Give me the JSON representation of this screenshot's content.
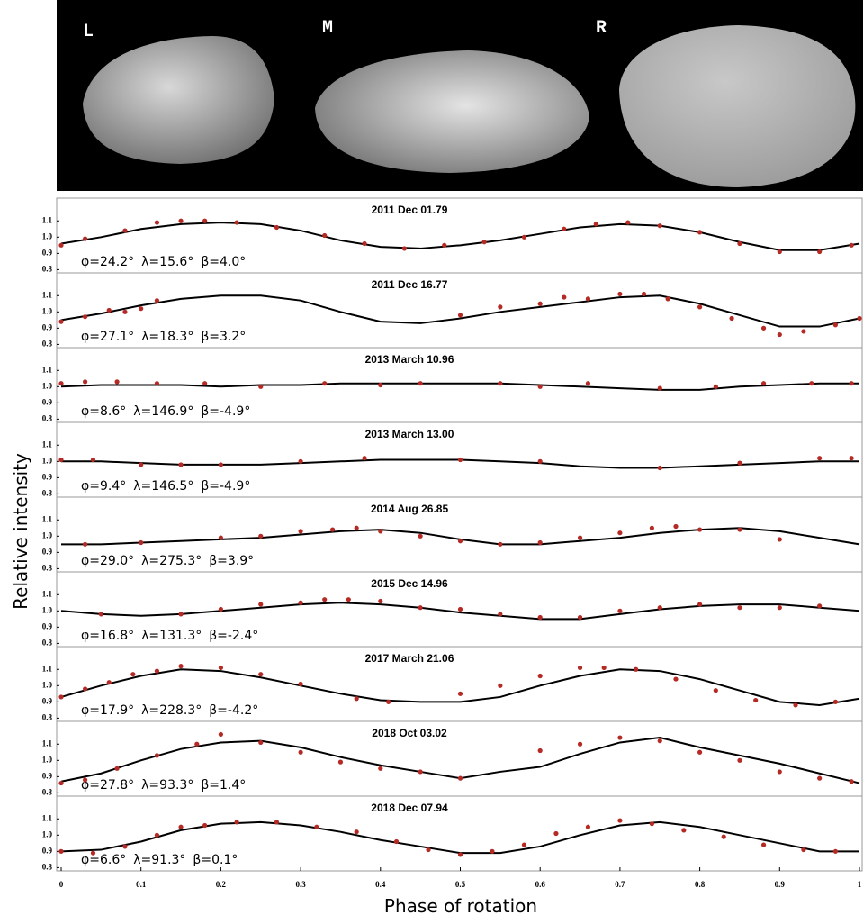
{
  "images": [
    "L",
    "M",
    "R"
  ],
  "ylabel": "Relative intensity",
  "chart_data": [
    {
      "type": "line",
      "title": "2011 Dec 01.79",
      "annotation": [
        "φ=24.2°",
        "λ=15.6°",
        "β=4.0°"
      ],
      "xlim": [
        0,
        1
      ],
      "ylim": [
        0.78,
        1.24
      ],
      "yticks": [
        0.8,
        0.9,
        {
          "value": 1,
          "label": "1.0"
        },
        1.1
      ],
      "series": [
        {
          "type": "line",
          "color": "#000000",
          "x": [
            0,
            0.05,
            0.1,
            0.15,
            0.2,
            0.25,
            0.3,
            0.35,
            0.4,
            0.45,
            0.5,
            0.55,
            0.6,
            0.65,
            0.7,
            0.75,
            0.8,
            0.85,
            0.9,
            0.95,
            1
          ],
          "values": [
            0.96,
            1.0,
            1.05,
            1.08,
            1.09,
            1.08,
            1.04,
            0.98,
            0.94,
            0.93,
            0.95,
            0.98,
            1.02,
            1.06,
            1.08,
            1.07,
            1.03,
            0.97,
            0.92,
            0.92,
            0.96
          ]
        },
        {
          "type": "scatter",
          "color": "#b52a25",
          "x": [
            0,
            0.03,
            0.08,
            0.12,
            0.15,
            0.18,
            0.22,
            0.27,
            0.33,
            0.38,
            0.43,
            0.48,
            0.53,
            0.58,
            0.63,
            0.67,
            0.71,
            0.75,
            0.8,
            0.85,
            0.9,
            0.95,
            0.99
          ],
          "values": [
            0.95,
            0.99,
            1.04,
            1.09,
            1.1,
            1.1,
            1.09,
            1.06,
            1.01,
            0.96,
            0.93,
            0.95,
            0.97,
            1.0,
            1.05,
            1.08,
            1.09,
            1.07,
            1.03,
            0.96,
            0.91,
            0.91,
            0.95
          ]
        }
      ]
    },
    {
      "type": "line",
      "title": "2011 Dec 16.77",
      "annotation": [
        "φ=27.1°",
        "λ=18.3°",
        "β=3.2°"
      ],
      "xlim": [
        0,
        1
      ],
      "ylim": [
        0.78,
        1.24
      ],
      "yticks": [
        0.8,
        0.9,
        {
          "value": 1,
          "label": "1.0"
        },
        1.1
      ],
      "series": [
        {
          "type": "line",
          "color": "#000000",
          "x": [
            0,
            0.05,
            0.1,
            0.15,
            0.2,
            0.25,
            0.3,
            0.35,
            0.4,
            0.45,
            0.5,
            0.55,
            0.6,
            0.65,
            0.7,
            0.75,
            0.8,
            0.85,
            0.9,
            0.95,
            1
          ],
          "values": [
            0.95,
            0.99,
            1.04,
            1.08,
            1.1,
            1.1,
            1.07,
            1.0,
            0.94,
            0.93,
            0.96,
            1.0,
            1.03,
            1.06,
            1.09,
            1.1,
            1.05,
            0.98,
            0.91,
            0.91,
            0.96
          ]
        },
        {
          "type": "scatter",
          "color": "#b52a25",
          "x": [
            0,
            0.03,
            0.06,
            0.08,
            0.1,
            0.12,
            0.5,
            0.55,
            0.6,
            0.63,
            0.66,
            0.7,
            0.73,
            0.76,
            0.8,
            0.84,
            0.88,
            0.9,
            0.93,
            0.97,
            1.0
          ],
          "values": [
            0.94,
            0.97,
            1.01,
            1.0,
            1.02,
            1.07,
            0.98,
            1.03,
            1.05,
            1.09,
            1.08,
            1.11,
            1.11,
            1.08,
            1.03,
            0.96,
            0.9,
            0.86,
            0.88,
            0.92,
            0.96
          ]
        }
      ]
    },
    {
      "type": "line",
      "title": "2013 March 10.96",
      "annotation": [
        "φ=8.6°",
        "λ=146.9°",
        "β=-4.9°"
      ],
      "xlim": [
        0,
        1
      ],
      "ylim": [
        0.78,
        1.24
      ],
      "yticks": [
        0.8,
        0.9,
        {
          "value": 1,
          "label": "1.0"
        },
        1.1
      ],
      "series": [
        {
          "type": "line",
          "color": "#000000",
          "x": [
            0,
            0.05,
            0.1,
            0.15,
            0.2,
            0.25,
            0.3,
            0.35,
            0.4,
            0.45,
            0.5,
            0.55,
            0.6,
            0.65,
            0.7,
            0.75,
            0.8,
            0.85,
            0.9,
            0.95,
            1
          ],
          "values": [
            1.0,
            1.01,
            1.01,
            1.01,
            1.0,
            1.01,
            1.01,
            1.02,
            1.02,
            1.02,
            1.02,
            1.02,
            1.01,
            1.0,
            0.99,
            0.98,
            0.98,
            1.0,
            1.01,
            1.02,
            1.02
          ]
        },
        {
          "type": "scatter",
          "color": "#b52a25",
          "x": [
            0,
            0.03,
            0.07,
            0.12,
            0.18,
            0.25,
            0.33,
            0.4,
            0.45,
            0.55,
            0.6,
            0.66,
            0.75,
            0.82,
            0.88,
            0.94,
            0.99
          ],
          "values": [
            1.02,
            1.03,
            1.03,
            1.02,
            1.02,
            1.0,
            1.02,
            1.01,
            1.02,
            1.02,
            1.0,
            1.02,
            0.99,
            1.0,
            1.02,
            1.02,
            1.02
          ]
        }
      ]
    },
    {
      "type": "line",
      "title": "2013 March 13.00",
      "annotation": [
        "φ=9.4°",
        "λ=146.5°",
        "β=-4.9°"
      ],
      "xlim": [
        0,
        1
      ],
      "ylim": [
        0.78,
        1.24
      ],
      "yticks": [
        0.8,
        0.9,
        {
          "value": 1,
          "label": "1.0"
        },
        1.1
      ],
      "series": [
        {
          "type": "line",
          "color": "#000000",
          "x": [
            0,
            0.05,
            0.1,
            0.15,
            0.2,
            0.25,
            0.3,
            0.35,
            0.4,
            0.45,
            0.5,
            0.55,
            0.6,
            0.65,
            0.7,
            0.75,
            0.8,
            0.85,
            0.9,
            0.95,
            1
          ],
          "values": [
            1.0,
            1.0,
            0.99,
            0.98,
            0.98,
            0.98,
            0.99,
            1.0,
            1.01,
            1.01,
            1.01,
            1.0,
            0.99,
            0.97,
            0.96,
            0.96,
            0.97,
            0.98,
            0.99,
            1.0,
            1.0
          ]
        },
        {
          "type": "scatter",
          "color": "#b52a25",
          "x": [
            0,
            0.04,
            0.1,
            0.15,
            0.2,
            0.3,
            0.38,
            0.5,
            0.6,
            0.75,
            0.85,
            0.95,
            0.99
          ],
          "values": [
            1.01,
            1.01,
            0.98,
            0.98,
            0.98,
            1.0,
            1.02,
            1.01,
            1.0,
            0.96,
            0.99,
            1.02,
            1.02
          ]
        }
      ]
    },
    {
      "type": "line",
      "title": "2014 Aug 26.85",
      "annotation": [
        "φ=29.0°",
        "λ=275.3°",
        "β=3.9°"
      ],
      "xlim": [
        0,
        1
      ],
      "ylim": [
        0.78,
        1.24
      ],
      "yticks": [
        0.8,
        0.9,
        {
          "value": 1,
          "label": "1.0"
        },
        1.1
      ],
      "series": [
        {
          "type": "line",
          "color": "#000000",
          "x": [
            0,
            0.05,
            0.1,
            0.15,
            0.2,
            0.25,
            0.3,
            0.35,
            0.4,
            0.45,
            0.5,
            0.55,
            0.6,
            0.65,
            0.7,
            0.75,
            0.8,
            0.85,
            0.9,
            0.95,
            1
          ],
          "values": [
            0.95,
            0.95,
            0.96,
            0.97,
            0.98,
            0.99,
            1.01,
            1.03,
            1.04,
            1.02,
            0.98,
            0.95,
            0.95,
            0.97,
            0.99,
            1.02,
            1.04,
            1.05,
            1.03,
            0.99,
            0.95
          ]
        },
        {
          "type": "scatter",
          "color": "#b52a25",
          "x": [
            0.03,
            0.1,
            0.2,
            0.25,
            0.3,
            0.34,
            0.37,
            0.4,
            0.45,
            0.5,
            0.55,
            0.6,
            0.65,
            0.7,
            0.74,
            0.77,
            0.8,
            0.85,
            0.9
          ],
          "values": [
            0.95,
            0.96,
            0.99,
            1.0,
            1.03,
            1.04,
            1.05,
            1.03,
            1.0,
            0.97,
            0.95,
            0.96,
            0.99,
            1.02,
            1.05,
            1.06,
            1.04,
            1.04,
            0.98
          ]
        }
      ]
    },
    {
      "type": "line",
      "title": "2015 Dec 14.96",
      "annotation": [
        "φ=16.8°",
        "λ=131.3°",
        "β=-2.4°"
      ],
      "xlim": [
        0,
        1
      ],
      "ylim": [
        0.78,
        1.24
      ],
      "yticks": [
        0.8,
        0.9,
        {
          "value": 1,
          "label": "1.0"
        },
        1.1
      ],
      "series": [
        {
          "type": "line",
          "color": "#000000",
          "x": [
            0,
            0.05,
            0.1,
            0.15,
            0.2,
            0.25,
            0.3,
            0.35,
            0.4,
            0.45,
            0.5,
            0.55,
            0.6,
            0.65,
            0.7,
            0.75,
            0.8,
            0.85,
            0.9,
            0.95,
            1
          ],
          "values": [
            1.0,
            0.98,
            0.97,
            0.98,
            1.0,
            1.02,
            1.04,
            1.05,
            1.04,
            1.02,
            0.99,
            0.97,
            0.95,
            0.95,
            0.98,
            1.01,
            1.03,
            1.04,
            1.04,
            1.02,
            1.0
          ]
        },
        {
          "type": "scatter",
          "color": "#b52a25",
          "x": [
            0.05,
            0.15,
            0.2,
            0.25,
            0.3,
            0.33,
            0.36,
            0.4,
            0.45,
            0.5,
            0.55,
            0.6,
            0.65,
            0.7,
            0.75,
            0.8,
            0.85,
            0.9,
            0.95
          ],
          "values": [
            0.98,
            0.98,
            1.01,
            1.04,
            1.05,
            1.07,
            1.07,
            1.06,
            1.02,
            1.01,
            0.98,
            0.96,
            0.96,
            1.0,
            1.02,
            1.04,
            1.02,
            1.02,
            1.03
          ]
        }
      ]
    },
    {
      "type": "line",
      "title": "2017 March 21.06",
      "annotation": [
        "φ=17.9°",
        "λ=228.3°",
        "β=-4.2°"
      ],
      "xlim": [
        0,
        1
      ],
      "ylim": [
        0.78,
        1.24
      ],
      "yticks": [
        0.8,
        0.9,
        {
          "value": 1,
          "label": "1.0"
        },
        1.1
      ],
      "series": [
        {
          "type": "line",
          "color": "#000000",
          "x": [
            0,
            0.05,
            0.1,
            0.15,
            0.2,
            0.25,
            0.3,
            0.35,
            0.4,
            0.45,
            0.5,
            0.55,
            0.6,
            0.65,
            0.7,
            0.75,
            0.8,
            0.85,
            0.9,
            0.95,
            1
          ],
          "values": [
            0.93,
            1.0,
            1.06,
            1.1,
            1.09,
            1.05,
            1.0,
            0.95,
            0.91,
            0.9,
            0.9,
            0.93,
            1.0,
            1.06,
            1.1,
            1.09,
            1.04,
            0.97,
            0.9,
            0.88,
            0.92
          ]
        },
        {
          "type": "scatter",
          "color": "#b52a25",
          "x": [
            0,
            0.03,
            0.06,
            0.09,
            0.12,
            0.15,
            0.2,
            0.25,
            0.3,
            0.37,
            0.41,
            0.5,
            0.55,
            0.6,
            0.65,
            0.68,
            0.72,
            0.77,
            0.82,
            0.87,
            0.92,
            0.97
          ],
          "values": [
            0.93,
            0.98,
            1.02,
            1.07,
            1.09,
            1.12,
            1.11,
            1.07,
            1.01,
            0.92,
            0.9,
            0.95,
            1.0,
            1.06,
            1.11,
            1.11,
            1.1,
            1.04,
            0.97,
            0.91,
            0.88,
            0.9
          ]
        }
      ]
    },
    {
      "type": "line",
      "title": "2018 Oct 03.02",
      "annotation": [
        "φ=27.8°",
        "λ=93.3°",
        "β=1.4°"
      ],
      "xlim": [
        0,
        1
      ],
      "ylim": [
        0.78,
        1.24
      ],
      "yticks": [
        0.8,
        0.9,
        {
          "value": 1,
          "label": "1.0"
        },
        1.1
      ],
      "series": [
        {
          "type": "line",
          "color": "#000000",
          "x": [
            0,
            0.05,
            0.1,
            0.15,
            0.2,
            0.25,
            0.3,
            0.35,
            0.4,
            0.45,
            0.5,
            0.55,
            0.6,
            0.65,
            0.7,
            0.75,
            0.8,
            0.85,
            0.9,
            0.95,
            1
          ],
          "values": [
            0.87,
            0.92,
            1.0,
            1.07,
            1.11,
            1.12,
            1.08,
            1.02,
            0.97,
            0.93,
            0.89,
            0.93,
            0.96,
            1.04,
            1.11,
            1.14,
            1.08,
            1.03,
            0.98,
            0.92,
            0.86
          ]
        },
        {
          "type": "scatter",
          "color": "#b52a25",
          "x": [
            0,
            0.03,
            0.07,
            0.12,
            0.17,
            0.2,
            0.25,
            0.3,
            0.35,
            0.4,
            0.45,
            0.5,
            0.6,
            0.65,
            0.7,
            0.75,
            0.8,
            0.85,
            0.9,
            0.95,
            0.99
          ],
          "values": [
            0.86,
            0.88,
            0.95,
            1.03,
            1.1,
            1.16,
            1.11,
            1.05,
            0.99,
            0.95,
            0.93,
            0.89,
            1.06,
            1.1,
            1.14,
            1.12,
            1.05,
            1.0,
            0.93,
            0.89,
            0.87
          ]
        }
      ]
    },
    {
      "type": "line",
      "title": "2018 Dec 07.94",
      "annotation": [
        "φ=6.6°",
        "λ=91.3°",
        "β=0.1°"
      ],
      "xlim": [
        0,
        1
      ],
      "ylim": [
        0.78,
        1.24
      ],
      "yticks": [
        0.8,
        0.9,
        {
          "value": 1,
          "label": "1.0"
        },
        1.1
      ],
      "xticks": [
        0,
        0.1,
        0.2,
        0.3,
        0.4,
        0.5,
        0.6,
        0.7,
        0.8,
        0.9,
        1
      ],
      "xlabel": "Phase of rotation",
      "series": [
        {
          "type": "line",
          "color": "#000000",
          "x": [
            0,
            0.05,
            0.1,
            0.15,
            0.2,
            0.25,
            0.3,
            0.35,
            0.4,
            0.45,
            0.5,
            0.55,
            0.6,
            0.65,
            0.7,
            0.75,
            0.8,
            0.85,
            0.9,
            0.95,
            1
          ],
          "values": [
            0.9,
            0.91,
            0.96,
            1.03,
            1.07,
            1.08,
            1.06,
            1.02,
            0.97,
            0.93,
            0.89,
            0.89,
            0.93,
            1.0,
            1.06,
            1.08,
            1.05,
            1.0,
            0.95,
            0.9,
            0.9
          ]
        },
        {
          "type": "scatter",
          "color": "#b52a25",
          "x": [
            0,
            0.04,
            0.08,
            0.12,
            0.15,
            0.18,
            0.22,
            0.27,
            0.32,
            0.37,
            0.42,
            0.46,
            0.5,
            0.54,
            0.58,
            0.62,
            0.66,
            0.7,
            0.74,
            0.78,
            0.83,
            0.88,
            0.93,
            0.97
          ],
          "values": [
            0.9,
            0.89,
            0.93,
            1.0,
            1.05,
            1.06,
            1.08,
            1.08,
            1.05,
            1.02,
            0.96,
            0.91,
            0.88,
            0.9,
            0.94,
            1.01,
            1.05,
            1.09,
            1.07,
            1.03,
            0.99,
            0.94,
            0.91,
            0.9
          ]
        }
      ]
    }
  ]
}
